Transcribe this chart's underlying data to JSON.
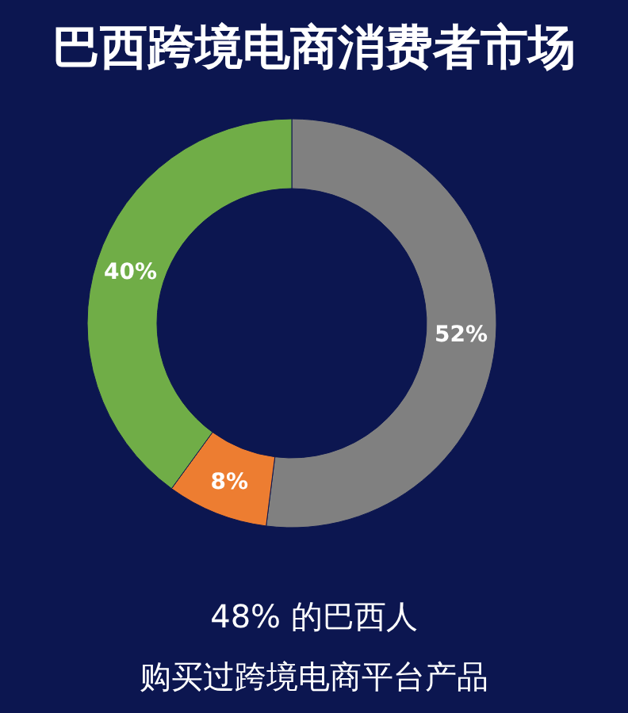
{
  "chart_data": {
    "type": "donut",
    "title": "巴西跨境电商消费者市场",
    "categories": [
      null,
      null,
      null
    ],
    "values": [
      52,
      8,
      40
    ],
    "colors": [
      "#808080",
      "#ed7d31",
      "#70ad47"
    ],
    "value_labels": [
      "52%",
      "8%",
      "40%"
    ],
    "annotations": [
      "48% 的巴西人",
      "购买过跨境电商平台产品"
    ]
  }
}
